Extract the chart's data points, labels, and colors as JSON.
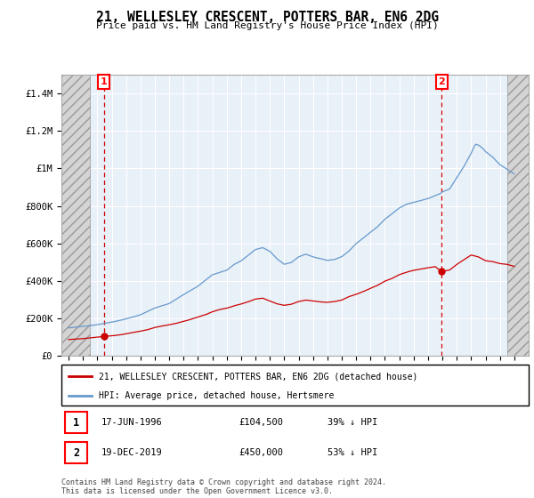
{
  "title": "21, WELLESLEY CRESCENT, POTTERS BAR, EN6 2DG",
  "subtitle": "Price paid vs. HM Land Registry's House Price Index (HPI)",
  "legend_label_red": "21, WELLESLEY CRESCENT, POTTERS BAR, EN6 2DG (detached house)",
  "legend_label_blue": "HPI: Average price, detached house, Hertsmere",
  "annotation1_date": "17-JUN-1996",
  "annotation1_price": "£104,500",
  "annotation1_hpi": "39% ↓ HPI",
  "annotation2_date": "19-DEC-2019",
  "annotation2_price": "£450,000",
  "annotation2_hpi": "53% ↓ HPI",
  "footer": "Contains HM Land Registry data © Crown copyright and database right 2024.\nThis data is licensed under the Open Government Licence v3.0.",
  "sale1_year": 1996.46,
  "sale1_value": 104500,
  "sale2_year": 2019.96,
  "sale2_value": 450000,
  "red_color": "#cc0000",
  "blue_color": "#6699cc",
  "plot_bg_color": "#e8f0f8",
  "hatch_color": "#c8c8c8",
  "ylim_max": 1500000,
  "ylim_min": 0,
  "xmin": 1993.5,
  "xmax": 2026.0,
  "hatch_left_end": 1995.5,
  "hatch_right_start": 2024.5
}
